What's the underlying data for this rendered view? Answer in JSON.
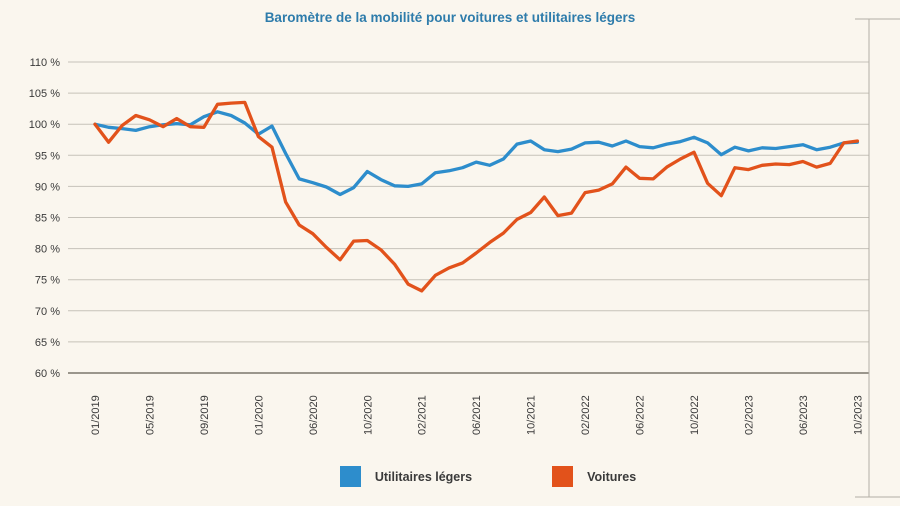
{
  "title": "Baromètre de la mobilité pour voitures et utilitaires légers",
  "colors": {
    "background": "#faf6ee",
    "grid": "#c6c2b9",
    "axis_baseline": "#7a766c",
    "frame": "#b3afa6",
    "title": "#2e7cab",
    "label": "#3a3a3a",
    "series_blue": "#2d8dcc",
    "series_orange": "#e2521b"
  },
  "legend": [
    {
      "label": "Utilitaires légers",
      "color": "#2d8dcc"
    },
    {
      "label": "Voitures",
      "color": "#e2521b"
    }
  ],
  "chart_data": {
    "type": "line",
    "title": "Baromètre de la mobilité pour voitures et utilitaires légers",
    "xlabel": "",
    "ylabel": "",
    "y_unit": "%",
    "ylim": [
      60,
      110
    ],
    "y_tick_step": 5,
    "y_tick_labels": [
      "110 %",
      "105 %",
      "100 %",
      "95 %",
      "90 %",
      "85 %",
      "80 %",
      "75 %",
      "70 %",
      "65 %",
      "60 %"
    ],
    "x_tick_labels": [
      "01/2019",
      "05/2019",
      "09/2019",
      "01/2020",
      "06/2020",
      "10/2020",
      "02/2021",
      "06/2021",
      "10/2021",
      "02/2022",
      "06/2022",
      "10/2022",
      "02/2023",
      "06/2023",
      "10/2023"
    ],
    "x_tick_every": 4,
    "n_points": 57,
    "grid": "horizontal",
    "legend_position": "bottom",
    "series": [
      {
        "name": "Utilitaires légers",
        "color": "#2d8dcc",
        "values": [
          100,
          99.5,
          99.3,
          99,
          99.6,
          99.9,
          100.1,
          99.9,
          101.2,
          102,
          101.4,
          100.2,
          98.4,
          99.7,
          95.3,
          91.2,
          90.6,
          89.9,
          88.7,
          89.8,
          92.4,
          91.1,
          90.1,
          90,
          90.4,
          92.2,
          92.5,
          93,
          93.9,
          93.4,
          94.4,
          96.8,
          97.3,
          95.9,
          95.6,
          96,
          97,
          97.1,
          96.5,
          97.3,
          96.4,
          96.2,
          96.8,
          97.2,
          97.9,
          97,
          95.1,
          96.3,
          95.7,
          96.2,
          96.1,
          96.4,
          96.7,
          95.9,
          96.3,
          97,
          97.1
        ]
      },
      {
        "name": "Voitures",
        "color": "#e2521b",
        "values": [
          100,
          97.1,
          99.8,
          101.4,
          100.7,
          99.6,
          100.9,
          99.6,
          99.5,
          103.2,
          103.4,
          103.5,
          98,
          96.3,
          87.5,
          83.8,
          82.4,
          80.2,
          78.2,
          81.2,
          81.3,
          79.8,
          77.5,
          74.3,
          73.2,
          75.7,
          76.9,
          77.7,
          79.3,
          81,
          82.5,
          84.7,
          85.8,
          88.3,
          85.3,
          85.7,
          89,
          89.4,
          90.4,
          93.1,
          91.3,
          91.2,
          93.1,
          94.4,
          95.5,
          90.5,
          88.5,
          93,
          92.7,
          93.4,
          93.6,
          93.5,
          94,
          93.1,
          93.7,
          97,
          97.3
        ]
      }
    ]
  }
}
